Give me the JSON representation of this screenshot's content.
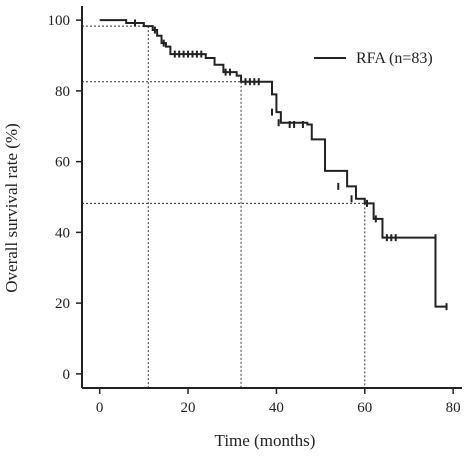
{
  "chart_data": {
    "type": "line",
    "subtype": "kaplan-meier",
    "title": "",
    "xlabel": "Time (months)",
    "ylabel": "Overall survival rate (%)",
    "xlim": [
      -4,
      82
    ],
    "ylim": [
      -4,
      104
    ],
    "xticks": [
      0,
      20,
      40,
      60,
      80
    ],
    "yticks": [
      0,
      20,
      40,
      60,
      80,
      100
    ],
    "grid": false,
    "legend_position": "top-right",
    "series": [
      {
        "name": "RFA (n=83)",
        "color": "#222222",
        "steps": [
          [
            0,
            100
          ],
          [
            6,
            99.2
          ],
          [
            10,
            98.3
          ],
          [
            11,
            98.3
          ],
          [
            12,
            97.2
          ],
          [
            13,
            95.6
          ],
          [
            14,
            93.5
          ],
          [
            15,
            92.5
          ],
          [
            16,
            90.4
          ],
          [
            24,
            89.3
          ],
          [
            26,
            87.4
          ],
          [
            28,
            85.3
          ],
          [
            31,
            84.3
          ],
          [
            32,
            82.6
          ],
          [
            37,
            82.6
          ],
          [
            39,
            79
          ],
          [
            40,
            74
          ],
          [
            41,
            71
          ],
          [
            47,
            70.5
          ],
          [
            48,
            66.3
          ],
          [
            50,
            66.3
          ],
          [
            51,
            57.4
          ],
          [
            56,
            53
          ],
          [
            58,
            49.5
          ],
          [
            60,
            48.2
          ],
          [
            62,
            43.8
          ],
          [
            64,
            38.5
          ],
          [
            76,
            38.5
          ],
          [
            76,
            19
          ],
          [
            78.5,
            19
          ]
        ],
        "censored": [
          [
            8,
            99.2
          ],
          [
            12.5,
            97.2
          ],
          [
            14.5,
            93.5
          ],
          [
            17,
            90.4
          ],
          [
            18,
            90.4
          ],
          [
            19,
            90.4
          ],
          [
            20,
            90.4
          ],
          [
            21,
            90.4
          ],
          [
            22,
            90.4
          ],
          [
            23,
            90.4
          ],
          [
            28.5,
            85.3
          ],
          [
            29.5,
            85.3
          ],
          [
            33,
            82.6
          ],
          [
            34,
            82.6
          ],
          [
            35,
            82.6
          ],
          [
            36,
            82.6
          ],
          [
            39,
            74
          ],
          [
            40.5,
            71
          ],
          [
            43,
            70.5
          ],
          [
            44,
            70.5
          ],
          [
            46,
            70.5
          ],
          [
            54,
            53
          ],
          [
            57,
            49.5
          ],
          [
            60.5,
            48.2
          ],
          [
            62.5,
            43.8
          ],
          [
            65,
            38.5
          ],
          [
            66,
            38.5
          ],
          [
            67,
            38.5
          ],
          [
            76,
            38.5
          ],
          [
            78.5,
            19
          ]
        ]
      }
    ],
    "reference_lines": [
      {
        "x": 11,
        "y": 98.3
      },
      {
        "x": 32,
        "y": 82.6
      },
      {
        "x": 60,
        "y": 48.2
      }
    ],
    "legend": {
      "label": "RFA (n=83)"
    }
  }
}
